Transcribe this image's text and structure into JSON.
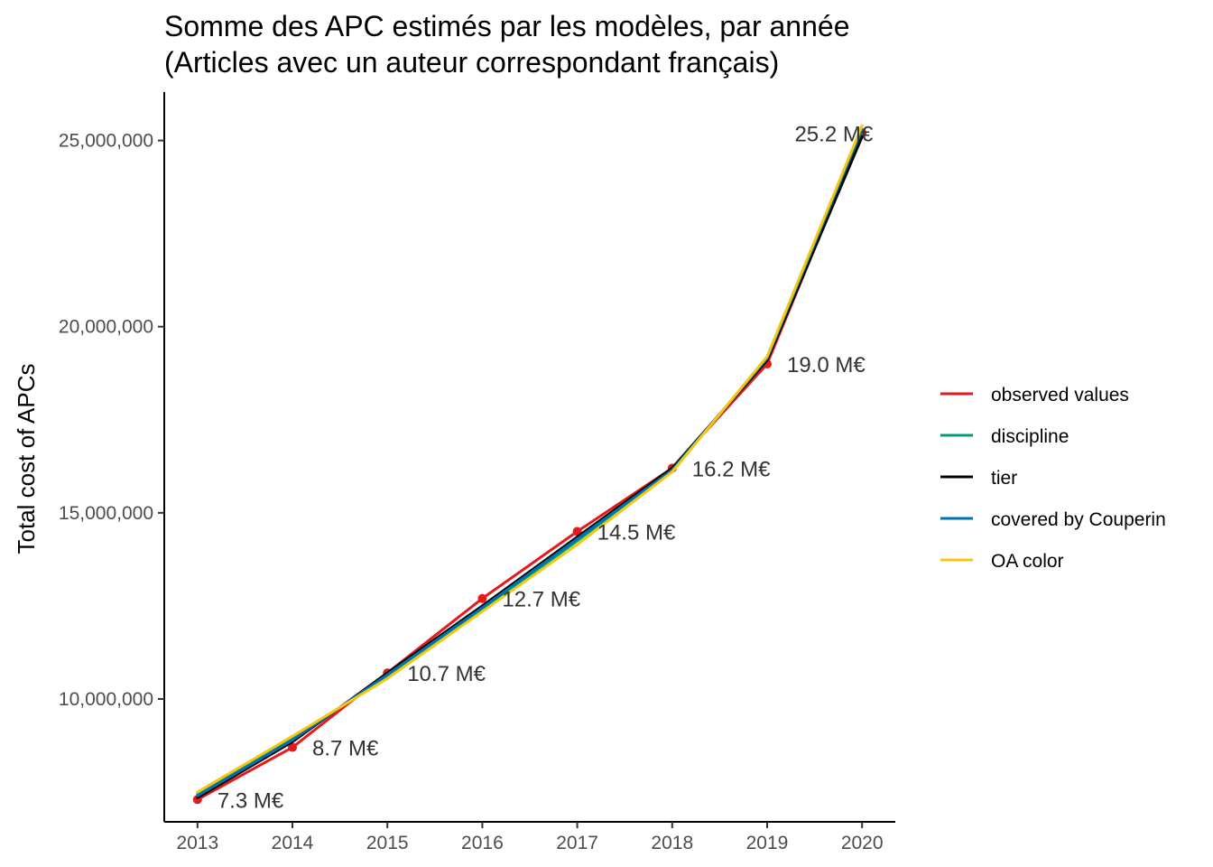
{
  "chart_data": {
    "type": "line",
    "title": "Somme des APC estimés par les modèles, par année",
    "subtitle": "(Articles avec un auteur correspondant français)",
    "xlabel": "",
    "ylabel": "Total cost of APCs",
    "x": [
      2013,
      2014,
      2015,
      2016,
      2017,
      2018,
      2019,
      2020
    ],
    "x_tick_labels": [
      "2013",
      "2014",
      "2015",
      "2016",
      "2017",
      "2018",
      "2019",
      "2020"
    ],
    "y_ticks": [
      10000000,
      15000000,
      20000000,
      25000000
    ],
    "y_tick_labels": [
      "10,000,000",
      "15,000,000",
      "20,000,000",
      "25,000,000"
    ],
    "xlim": [
      2012.65,
      2020.35
    ],
    "ylim": [
      6700000,
      26300000
    ],
    "grid": false,
    "legend_position": "right",
    "series": [
      {
        "name": "observed values",
        "color": "#e41a1c",
        "points": true,
        "values": [
          7300000,
          8700000,
          10700000,
          12700000,
          14500000,
          16200000,
          19000000,
          25200000
        ]
      },
      {
        "name": "discipline",
        "color": "#009e73",
        "points": false,
        "values": [
          7450000,
          8950000,
          10600000,
          12400000,
          14250000,
          16150000,
          19150000,
          25250000
        ]
      },
      {
        "name": "tier",
        "color": "#000000",
        "points": false,
        "values": [
          7350000,
          8850000,
          10700000,
          12500000,
          14350000,
          16200000,
          19100000,
          25100000
        ]
      },
      {
        "name": "covered by Couperin",
        "color": "#0072b2",
        "points": false,
        "values": [
          7400000,
          8900000,
          10650000,
          12450000,
          14300000,
          16150000,
          19150000,
          25300000
        ]
      },
      {
        "name": "OA color",
        "color": "#f5c710",
        "points": false,
        "values": [
          7500000,
          9000000,
          10550000,
          12350000,
          14150000,
          16100000,
          19200000,
          25400000
        ]
      }
    ],
    "data_labels": [
      "7.3 M€",
      "8.7 M€",
      "10.7 M€",
      "12.7 M€",
      "14.5 M€",
      "16.2 M€",
      "19.0 M€",
      "25.2 M€"
    ]
  }
}
